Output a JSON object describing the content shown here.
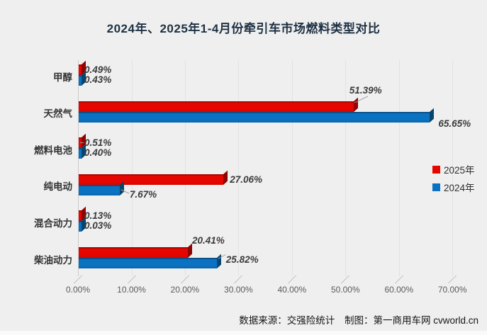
{
  "title": "2024年、2025年1-4月份牵引车市场燃料类型对比",
  "chart_data": {
    "type": "bar",
    "orientation": "horizontal",
    "title": "2024年、2025年1-4月份牵引车市场燃料类型对比",
    "categories": [
      "甲醇",
      "天然气",
      "燃料电池",
      "纯电动",
      "混合动力",
      "柴油动力"
    ],
    "series": [
      {
        "name": "2025年",
        "color": "#e60600",
        "values": [
          0.49,
          51.39,
          0.51,
          27.06,
          0.13,
          20.41
        ],
        "labels": [
          "0.49%",
          "51.39%",
          "0.51%",
          "27.06%",
          "0.13%",
          "20.41%"
        ]
      },
      {
        "name": "2024年",
        "color": "#0b72c2",
        "values": [
          0.43,
          65.65,
          0.4,
          7.67,
          0.03,
          25.82
        ],
        "labels": [
          "0.43%",
          "65.65%",
          "0.40%",
          "7.67%",
          "0.03%",
          "25.82%"
        ]
      }
    ],
    "xlabel": "",
    "ylabel": "",
    "xlim": [
      0,
      70
    ],
    "x_ticks": [
      "0.00%",
      "10.00%",
      "20.00%",
      "30.00%",
      "40.00%",
      "50.00%",
      "60.00%",
      "70.00%"
    ],
    "grid": true,
    "legend_position": "right"
  },
  "legend": {
    "items": [
      {
        "label": "2025年",
        "color": "#e60600"
      },
      {
        "label": "2024年",
        "color": "#0b72c2"
      }
    ]
  },
  "footer": {
    "source": "数据来源：交强险统计",
    "credit": "制图：第一商用车网 cvworld.cn"
  }
}
